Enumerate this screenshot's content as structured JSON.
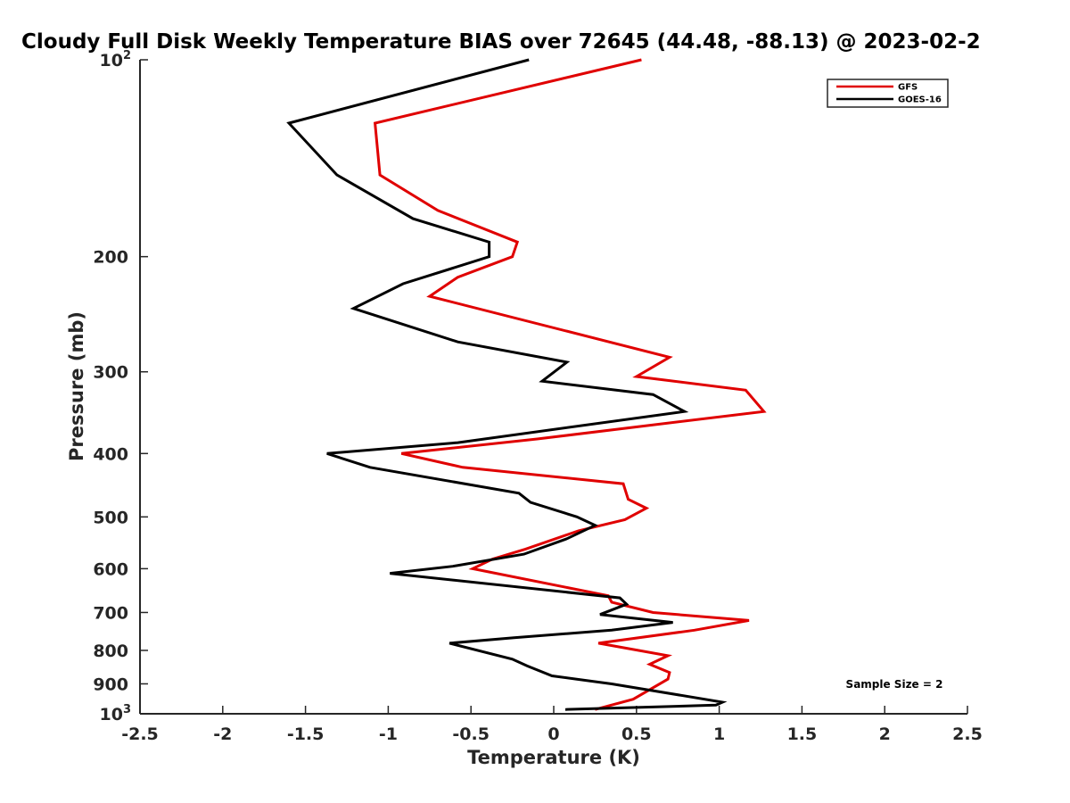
{
  "chart_data": {
    "type": "line",
    "title": "Cloudy Full Disk Weekly Temperature BIAS over 72645 (44.48, -88.13) @ 2023-02-2",
    "xlabel": "Temperature (K)",
    "ylabel": "Pressure (mb)",
    "xlim": [
      -2.5,
      2.5
    ],
    "ylim": [
      1000,
      100
    ],
    "y_scale": "log",
    "y_reversed": true,
    "grid": false,
    "legend_position": "top-right",
    "x_ticks": [
      {
        "value": -2.5,
        "label": "-2.5"
      },
      {
        "value": -2,
        "label": "-2"
      },
      {
        "value": -1.5,
        "label": "-1.5"
      },
      {
        "value": -1,
        "label": "-1"
      },
      {
        "value": -0.5,
        "label": "-0.5"
      },
      {
        "value": 0,
        "label": "0"
      },
      {
        "value": 0.5,
        "label": "0.5"
      },
      {
        "value": 1,
        "label": "1"
      },
      {
        "value": 1.5,
        "label": "1.5"
      },
      {
        "value": 2,
        "label": "2"
      },
      {
        "value": 2.5,
        "label": "2.5"
      }
    ],
    "y_ticks": [
      {
        "value": 100,
        "base": "10",
        "exp": "2"
      },
      {
        "value": 200,
        "label": "200"
      },
      {
        "value": 300,
        "label": "300"
      },
      {
        "value": 400,
        "label": "400"
      },
      {
        "value": 500,
        "label": "500"
      },
      {
        "value": 600,
        "label": "600"
      },
      {
        "value": 700,
        "label": "700"
      },
      {
        "value": 800,
        "label": "800"
      },
      {
        "value": 900,
        "label": "900"
      },
      {
        "value": 1000,
        "base": "10",
        "exp": "3"
      }
    ],
    "series": [
      {
        "name": "GFS",
        "color": "#e00000",
        "points": [
          [
            0.53,
            100
          ],
          [
            -1.08,
            125
          ],
          [
            -1.05,
            150
          ],
          [
            -0.7,
            170
          ],
          [
            -0.22,
            190
          ],
          [
            -0.25,
            200
          ],
          [
            -0.58,
            215
          ],
          [
            -0.75,
            230
          ],
          [
            0.7,
            285
          ],
          [
            0.5,
            305
          ],
          [
            1.16,
            320
          ],
          [
            1.27,
            345
          ],
          [
            -0.1,
            380
          ],
          [
            -0.92,
            400
          ],
          [
            -0.55,
            420
          ],
          [
            0.42,
            445
          ],
          [
            0.45,
            470
          ],
          [
            0.56,
            485
          ],
          [
            0.43,
            505
          ],
          [
            0.15,
            525
          ],
          [
            -0.17,
            560
          ],
          [
            -0.37,
            580
          ],
          [
            -0.49,
            600
          ],
          [
            0.33,
            660
          ],
          [
            0.35,
            675
          ],
          [
            0.6,
            700
          ],
          [
            1.18,
            720
          ],
          [
            0.85,
            745
          ],
          [
            0.27,
            780
          ],
          [
            0.69,
            815
          ],
          [
            0.58,
            840
          ],
          [
            0.7,
            865
          ],
          [
            0.69,
            885
          ],
          [
            0.48,
            950
          ],
          [
            0.25,
            985
          ]
        ]
      },
      {
        "name": "GOES-16",
        "color": "#000000",
        "points": [
          [
            -0.15,
            100
          ],
          [
            -1.6,
            125
          ],
          [
            -1.31,
            150
          ],
          [
            -0.85,
            175
          ],
          [
            -0.39,
            190
          ],
          [
            -0.39,
            200
          ],
          [
            -0.91,
            220
          ],
          [
            -1.21,
            240
          ],
          [
            -0.58,
            270
          ],
          [
            0.08,
            290
          ],
          [
            -0.07,
            310
          ],
          [
            0.6,
            325
          ],
          [
            0.79,
            345
          ],
          [
            -0.58,
            385
          ],
          [
            -1.37,
            400
          ],
          [
            -1.11,
            420
          ],
          [
            -0.21,
            460
          ],
          [
            -0.14,
            475
          ],
          [
            0.14,
            500
          ],
          [
            0.25,
            515
          ],
          [
            0.08,
            540
          ],
          [
            -0.18,
            570
          ],
          [
            -0.61,
            595
          ],
          [
            -0.99,
            610
          ],
          [
            0.4,
            665
          ],
          [
            0.44,
            680
          ],
          [
            0.28,
            705
          ],
          [
            0.72,
            725
          ],
          [
            0.35,
            745
          ],
          [
            -0.24,
            765
          ],
          [
            -0.63,
            780
          ],
          [
            -0.25,
            825
          ],
          [
            -0.16,
            845
          ],
          [
            -0.01,
            875
          ],
          [
            0.35,
            900
          ],
          [
            1.02,
            960
          ],
          [
            0.98,
            970
          ],
          [
            0.07,
            985
          ]
        ]
      }
    ],
    "annotation": "Sample Size = 2"
  }
}
